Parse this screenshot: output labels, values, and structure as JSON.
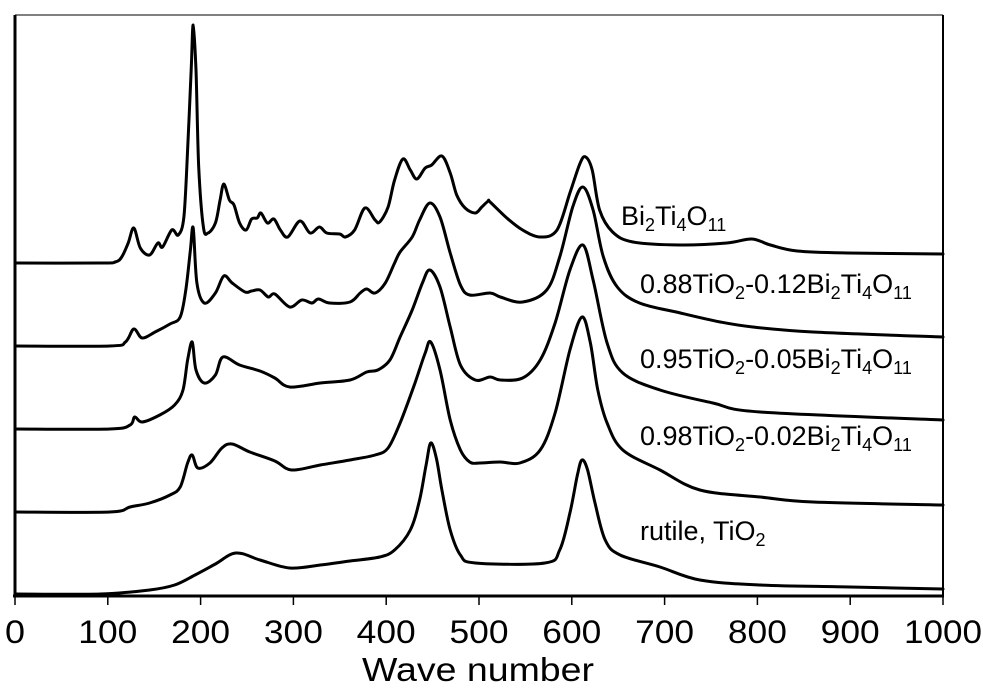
{
  "chart_data": {
    "type": "line",
    "title": "",
    "xlabel": "Wave number",
    "ylabel": "",
    "xlim": [
      0,
      1000
    ],
    "ylim": [
      0,
      116
    ],
    "xticks": [
      0,
      100,
      200,
      300,
      400,
      500,
      600,
      700,
      800,
      900,
      1000
    ],
    "xtick_labels": [
      "0",
      "100",
      "200",
      "300",
      "400",
      "500",
      "600",
      "700",
      "800",
      "900",
      "1000"
    ],
    "grid": false,
    "line_color": "#000000",
    "series": [
      {
        "name": "Bi2Ti4O11",
        "points": [
          [
            0,
            66.4
          ],
          [
            92,
            66.4
          ],
          [
            108,
            66.6
          ],
          [
            115,
            67.6
          ],
          [
            122,
            70.4
          ],
          [
            128,
            73.4
          ],
          [
            135,
            69.4
          ],
          [
            145,
            68
          ],
          [
            154,
            70.4
          ],
          [
            159,
            69.6
          ],
          [
            169,
            73
          ],
          [
            176,
            72
          ],
          [
            182,
            75.6
          ],
          [
            186,
            89
          ],
          [
            190,
            105.6
          ],
          [
            192,
            114
          ],
          [
            195,
            105
          ],
          [
            198,
            85.6
          ],
          [
            203,
            73.6
          ],
          [
            208,
            72.4
          ],
          [
            216,
            74.4
          ],
          [
            221,
            79
          ],
          [
            225,
            82.2
          ],
          [
            231,
            79
          ],
          [
            236,
            78
          ],
          [
            242,
            74.4
          ],
          [
            249,
            73
          ],
          [
            255,
            75.2
          ],
          [
            261,
            75.4
          ],
          [
            265,
            76.4
          ],
          [
            272,
            74.4
          ],
          [
            279,
            75.2
          ],
          [
            286,
            73
          ],
          [
            294,
            71.6
          ],
          [
            307,
            74.8
          ],
          [
            318,
            72.4
          ],
          [
            328,
            73.6
          ],
          [
            336,
            72.4
          ],
          [
            350,
            72.2
          ],
          [
            356,
            71.6
          ],
          [
            366,
            73
          ],
          [
            377,
            77.4
          ],
          [
            388,
            75
          ],
          [
            393,
            74.6
          ],
          [
            402,
            77.6
          ],
          [
            409,
            83
          ],
          [
            418,
            87.2
          ],
          [
            426,
            85
          ],
          [
            433,
            83.2
          ],
          [
            442,
            85.4
          ],
          [
            449,
            86
          ],
          [
            460,
            87.8
          ],
          [
            469,
            84.4
          ],
          [
            476,
            80
          ],
          [
            485,
            77.4
          ],
          [
            496,
            76.4
          ],
          [
            503,
            77.6
          ],
          [
            510,
            78.8
          ],
          [
            512,
            78.6
          ],
          [
            530,
            75.4
          ],
          [
            547,
            73
          ],
          [
            566,
            71.6
          ],
          [
            584,
            73
          ],
          [
            598,
            80.4
          ],
          [
            609,
            86.4
          ],
          [
            615,
            87.6
          ],
          [
            622,
            85
          ],
          [
            630,
            77
          ],
          [
            644,
            72.6
          ],
          [
            666,
            70.6
          ],
          [
            717,
            70
          ],
          [
            767,
            70.4
          ],
          [
            794,
            71.2
          ],
          [
            814,
            70
          ],
          [
            843,
            68.8
          ],
          [
            897,
            68.4
          ],
          [
            1000,
            68.2
          ]
        ]
      },
      {
        "name": "0.88TiO2-0.12Bi2Ti4O11",
        "points": [
          [
            0,
            49.8
          ],
          [
            102,
            49.8
          ],
          [
            119,
            50.6
          ],
          [
            128,
            53.2
          ],
          [
            137,
            51.4
          ],
          [
            151,
            52.6
          ],
          [
            167,
            54.2
          ],
          [
            178,
            55.6
          ],
          [
            184,
            61
          ],
          [
            189,
            69
          ],
          [
            192,
            73.4
          ],
          [
            196,
            62.4
          ],
          [
            204,
            58.4
          ],
          [
            216,
            60.4
          ],
          [
            225,
            63.8
          ],
          [
            234,
            62.4
          ],
          [
            248,
            60.6
          ],
          [
            255,
            60.8
          ],
          [
            264,
            61
          ],
          [
            273,
            59.6
          ],
          [
            280,
            60.2
          ],
          [
            296,
            57.6
          ],
          [
            309,
            59
          ],
          [
            320,
            58.4
          ],
          [
            327,
            59.2
          ],
          [
            339,
            58.4
          ],
          [
            361,
            58.6
          ],
          [
            372,
            60.4
          ],
          [
            379,
            61.2
          ],
          [
            388,
            60.4
          ],
          [
            399,
            62.4
          ],
          [
            409,
            66.4
          ],
          [
            415,
            68.6
          ],
          [
            428,
            71.6
          ],
          [
            436,
            75
          ],
          [
            447,
            78.4
          ],
          [
            458,
            75.6
          ],
          [
            469,
            68.4
          ],
          [
            480,
            62
          ],
          [
            490,
            60
          ],
          [
            512,
            60.4
          ],
          [
            523,
            59.6
          ],
          [
            547,
            58.6
          ],
          [
            573,
            61
          ],
          [
            587,
            67.6
          ],
          [
            601,
            77.6
          ],
          [
            612,
            81.6
          ],
          [
            623,
            77
          ],
          [
            634,
            67.6
          ],
          [
            649,
            61.6
          ],
          [
            673,
            58.4
          ],
          [
            717,
            56.4
          ],
          [
            760,
            54.6
          ],
          [
            795,
            53.6
          ],
          [
            860,
            52.6
          ],
          [
            1000,
            51.6
          ]
        ]
      },
      {
        "name": "0.95TiO2-0.05Bi2Ti4O11",
        "points": [
          [
            0,
            33.2
          ],
          [
            102,
            33.2
          ],
          [
            124,
            34
          ],
          [
            129,
            35.6
          ],
          [
            137,
            34.6
          ],
          [
            156,
            36
          ],
          [
            172,
            38
          ],
          [
            181,
            41
          ],
          [
            186,
            47
          ],
          [
            191,
            50.6
          ],
          [
            195,
            45
          ],
          [
            204,
            42.4
          ],
          [
            216,
            44
          ],
          [
            224,
            47.6
          ],
          [
            242,
            46
          ],
          [
            264,
            44.8
          ],
          [
            280,
            43.4
          ],
          [
            296,
            41.6
          ],
          [
            329,
            42.4
          ],
          [
            361,
            43
          ],
          [
            379,
            44.6
          ],
          [
            391,
            45
          ],
          [
            404,
            47
          ],
          [
            415,
            51.6
          ],
          [
            428,
            57
          ],
          [
            439,
            62.4
          ],
          [
            447,
            65
          ],
          [
            458,
            61.6
          ],
          [
            469,
            53.6
          ],
          [
            480,
            46
          ],
          [
            496,
            43
          ],
          [
            512,
            43.6
          ],
          [
            523,
            43
          ],
          [
            547,
            43.4
          ],
          [
            566,
            47
          ],
          [
            582,
            54.4
          ],
          [
            598,
            65
          ],
          [
            612,
            70
          ],
          [
            623,
            63
          ],
          [
            638,
            50.4
          ],
          [
            655,
            44.4
          ],
          [
            695,
            41
          ],
          [
            752,
            38.4
          ],
          [
            803,
            36.6
          ],
          [
            1000,
            35
          ]
        ]
      },
      {
        "name": "0.98TiO2-0.02Bi2Ti4O11",
        "points": [
          [
            0,
            16.6
          ],
          [
            102,
            16.6
          ],
          [
            124,
            17.6
          ],
          [
            145,
            18.4
          ],
          [
            167,
            20
          ],
          [
            178,
            21.6
          ],
          [
            186,
            26.4
          ],
          [
            191,
            28
          ],
          [
            197,
            25.4
          ],
          [
            210,
            26.4
          ],
          [
            223,
            29.4
          ],
          [
            234,
            30.2
          ],
          [
            253,
            28.6
          ],
          [
            280,
            26.8
          ],
          [
            298,
            25
          ],
          [
            329,
            26
          ],
          [
            361,
            27
          ],
          [
            388,
            28
          ],
          [
            402,
            29.4
          ],
          [
            415,
            34.4
          ],
          [
            431,
            42.4
          ],
          [
            442,
            48.4
          ],
          [
            448,
            50.6
          ],
          [
            458,
            45
          ],
          [
            469,
            35
          ],
          [
            480,
            29
          ],
          [
            490,
            26.6
          ],
          [
            501,
            26.4
          ],
          [
            523,
            26.6
          ],
          [
            544,
            26.4
          ],
          [
            566,
            29
          ],
          [
            582,
            36.4
          ],
          [
            598,
            49
          ],
          [
            611,
            55.6
          ],
          [
            620,
            50.4
          ],
          [
            628,
            41
          ],
          [
            638,
            34.4
          ],
          [
            655,
            29
          ],
          [
            695,
            25
          ],
          [
            738,
            21
          ],
          [
            803,
            19.6
          ],
          [
            860,
            18.6
          ],
          [
            1000,
            18
          ]
        ]
      },
      {
        "name": "rutile, TiO2",
        "points": [
          [
            0,
            0.2
          ],
          [
            92,
            0.2
          ],
          [
            145,
            1
          ],
          [
            172,
            2
          ],
          [
            194,
            4
          ],
          [
            216,
            6.2
          ],
          [
            238,
            8.4
          ],
          [
            264,
            7
          ],
          [
            296,
            5.4
          ],
          [
            329,
            6
          ],
          [
            361,
            6.8
          ],
          [
            393,
            7.6
          ],
          [
            409,
            9
          ],
          [
            426,
            13
          ],
          [
            436,
            19
          ],
          [
            443,
            26
          ],
          [
            448,
            30.4
          ],
          [
            454,
            27.4
          ],
          [
            460,
            21
          ],
          [
            469,
            13
          ],
          [
            480,
            8
          ],
          [
            496,
            6.4
          ],
          [
            571,
            6.4
          ],
          [
            587,
            9
          ],
          [
            598,
            16.4
          ],
          [
            606,
            24
          ],
          [
            611,
            27
          ],
          [
            617,
            25
          ],
          [
            625,
            18.4
          ],
          [
            636,
            11
          ],
          [
            652,
            8
          ],
          [
            695,
            5.6
          ],
          [
            738,
            3
          ],
          [
            803,
            2
          ],
          [
            900,
            1.6
          ],
          [
            1000,
            1.2
          ]
        ]
      }
    ]
  }
}
